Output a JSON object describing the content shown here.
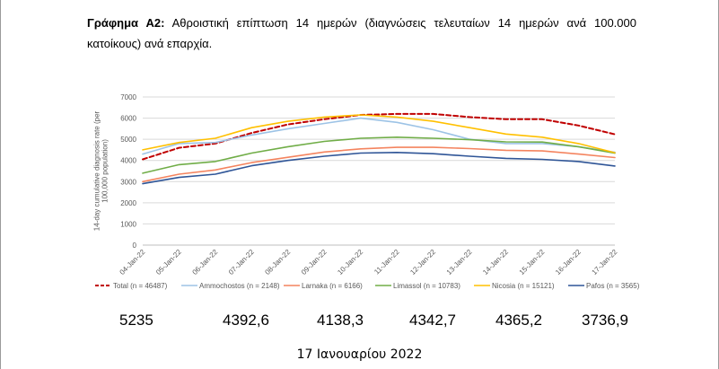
{
  "caption": {
    "bold": "Γράφημα Α2:",
    "text": " Αθροιστική επίπτωση 14 ημερών (διαγνώσεις τελευταίων 14 ημερών ανά 100.000 κατοίκους) ανά επαρχία."
  },
  "chart_data": {
    "type": "line",
    "ylabel": "14-day cumulative diagnosis rate (per 100,000 population)",
    "ylim": [
      0,
      7000
    ],
    "yticks": [
      0,
      1000,
      2000,
      3000,
      4000,
      5000,
      6000,
      7000
    ],
    "grid": true,
    "legend": "bottom",
    "categories": [
      "04-Jan-22",
      "05-Jan-22",
      "06-Jan-22",
      "07-Jan-22",
      "08-Jan-22",
      "09-Jan-22",
      "10-Jan-22",
      "11-Jan-22",
      "12-Jan-22",
      "13-Jan-22",
      "14-Jan-22",
      "15-Jan-22",
      "16-Jan-22",
      "17-Jan-22"
    ],
    "series": [
      {
        "name": "Total (n = 46487)",
        "color": "#c00000",
        "dashed": true,
        "values": [
          4050,
          4600,
          4800,
          5300,
          5700,
          5950,
          6150,
          6200,
          6200,
          6050,
          5950,
          5950,
          5650,
          5235
        ]
      },
      {
        "name": "Ammochostos (n = 2148)",
        "color": "#9dc3e6",
        "dashed": false,
        "values": [
          4300,
          4800,
          4850,
          5200,
          5500,
          5750,
          6000,
          5800,
          5450,
          5000,
          4800,
          4800,
          4650,
          4393
        ]
      },
      {
        "name": "Larnaka (n = 6166)",
        "color": "#f4845f",
        "dashed": false,
        "values": [
          3000,
          3350,
          3550,
          3900,
          4150,
          4400,
          4550,
          4620,
          4620,
          4560,
          4480,
          4450,
          4300,
          4138
        ]
      },
      {
        "name": "Limassol (n = 10783)",
        "color": "#70ad47",
        "dashed": false,
        "values": [
          3400,
          3800,
          3950,
          4350,
          4650,
          4900,
          5050,
          5100,
          5050,
          4980,
          4880,
          4870,
          4650,
          4343
        ]
      },
      {
        "name": "Nicosia (n = 15121)",
        "color": "#ffc000",
        "dashed": false,
        "values": [
          4500,
          4850,
          5050,
          5550,
          5850,
          6050,
          6150,
          6050,
          5850,
          5550,
          5250,
          5100,
          4800,
          4365
        ]
      },
      {
        "name": "Pafos (n = 3565)",
        "color": "#2f5597",
        "dashed": false,
        "values": [
          2900,
          3200,
          3350,
          3750,
          4000,
          4200,
          4350,
          4380,
          4320,
          4200,
          4100,
          4050,
          3950,
          3737
        ]
      }
    ]
  },
  "stats": [
    "5235",
    "4392,6",
    "4138,3",
    "4342,7",
    "4365,2",
    "3736,9"
  ],
  "footer_date": "17 Ιανουαρίου 2022"
}
